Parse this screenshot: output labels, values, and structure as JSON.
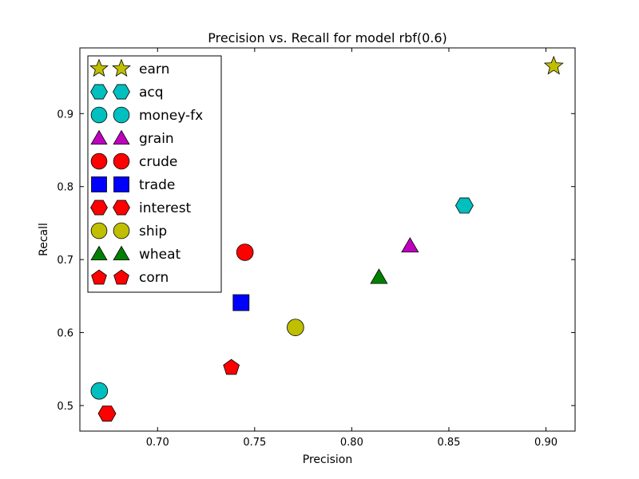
{
  "chart_data": {
    "type": "scatter",
    "title": "Precision vs. Recall for model rbf(0.6)",
    "xlabel": "Precision",
    "ylabel": "Recall",
    "xlim": [
      0.66,
      0.915
    ],
    "ylim": [
      0.465,
      0.99
    ],
    "xticks": [
      "0.70",
      "0.75",
      "0.80",
      "0.85",
      "0.90"
    ],
    "yticks": [
      "0.5",
      "0.6",
      "0.7",
      "0.8",
      "0.9"
    ],
    "grid": false,
    "legend_position": "top-left",
    "series": [
      {
        "name": "earn",
        "marker": "star",
        "color": "#bfbf00",
        "x": 0.904,
        "y": 0.965
      },
      {
        "name": "acq",
        "marker": "hexagon",
        "color": "#00bfbf",
        "x": 0.858,
        "y": 0.774
      },
      {
        "name": "money-fx",
        "marker": "circle",
        "color": "#00bfbf",
        "x": 0.67,
        "y": 0.52
      },
      {
        "name": "grain",
        "marker": "triangle",
        "color": "#bf00bf",
        "x": 0.83,
        "y": 0.719
      },
      {
        "name": "crude",
        "marker": "circle",
        "color": "#ff0000",
        "x": 0.745,
        "y": 0.71
      },
      {
        "name": "trade",
        "marker": "square",
        "color": "#0000ff",
        "x": 0.743,
        "y": 0.641
      },
      {
        "name": "interest",
        "marker": "hexagon",
        "color": "#ff0000",
        "x": 0.674,
        "y": 0.489
      },
      {
        "name": "ship",
        "marker": "circle",
        "color": "#bfbf00",
        "x": 0.771,
        "y": 0.607
      },
      {
        "name": "wheat",
        "marker": "triangle",
        "color": "#008000",
        "x": 0.814,
        "y": 0.676
      },
      {
        "name": "corn",
        "marker": "pentagon",
        "color": "#ff0000",
        "x": 0.738,
        "y": 0.553
      }
    ]
  }
}
